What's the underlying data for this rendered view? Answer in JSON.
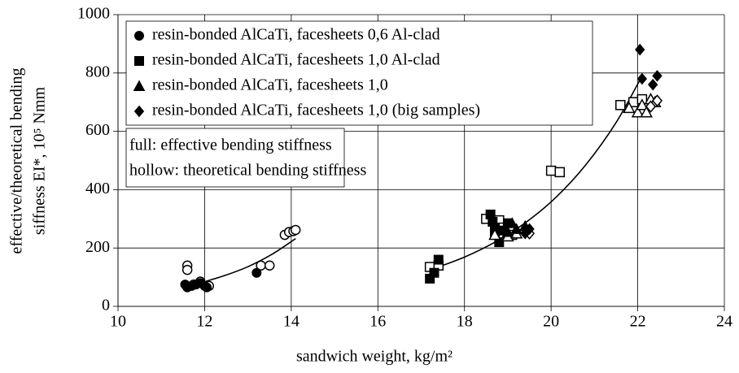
{
  "chart_data": {
    "type": "scatter",
    "x_label": "sandwich weight, kg/m²",
    "y_label": [
      "effective/theoretical bending",
      "siffness EI*, 10⁵ Nmm"
    ],
    "xlim": [
      10,
      24
    ],
    "xticks": [
      10,
      12,
      14,
      16,
      18,
      20,
      22,
      24
    ],
    "ylim": [
      0,
      1000
    ],
    "yticks": [
      0,
      200,
      400,
      600,
      800,
      1000
    ],
    "grid": true,
    "legend_position": "upper left",
    "annotations": [
      "full: effective bending stiffness",
      "hollow: theoretical bending stiffness"
    ],
    "series": [
      {
        "name": "resin-bonded AlCaTi, facesheets 0,6 Al-clad",
        "marker": "circle",
        "color": "#000000",
        "x": [
          11.55,
          11.6,
          11.7,
          11.8,
          11.9,
          12.0,
          12.05,
          13.2
        ],
        "values": [
          75,
          65,
          70,
          75,
          80,
          70,
          65,
          115
        ],
        "hollow_x": [
          11.6,
          11.6,
          11.75,
          11.9,
          12.1,
          13.3,
          13.5,
          13.85,
          13.95,
          14.05,
          14.1
        ],
        "hollow_values": [
          140,
          125,
          75,
          85,
          70,
          140,
          140,
          245,
          255,
          258,
          262
        ]
      },
      {
        "name": "resin-bonded AlCaTi, facesheets 1,0 Al-clad",
        "marker": "square",
        "color": "#000000",
        "x": [
          17.2,
          17.3,
          17.4,
          18.6,
          18.65,
          18.7,
          18.8,
          18.9,
          19.0,
          18.7
        ],
        "values": [
          95,
          115,
          160,
          315,
          290,
          270,
          220,
          260,
          285,
          250
        ],
        "hollow_x": [
          17.2,
          17.4,
          18.5,
          18.8,
          18.9,
          19.1,
          20.0,
          20.2,
          21.6,
          21.9,
          22.1
        ],
        "hollow_values": [
          135,
          140,
          300,
          295,
          270,
          245,
          465,
          460,
          690,
          700,
          710
        ]
      },
      {
        "name": "resin-bonded AlCaTi, facesheets 1,0",
        "marker": "triangle",
        "color": "#000000",
        "x": [
          19.1,
          19.2,
          19.4,
          19.0
        ],
        "values": [
          285,
          265,
          275,
          255
        ],
        "hollow_x": [
          18.7,
          19.0,
          19.2,
          21.8,
          22.0,
          22.1,
          22.2,
          22.3,
          22.4
        ],
        "hollow_values": [
          245,
          240,
          250,
          680,
          665,
          690,
          665,
          710,
          700
        ]
      },
      {
        "name": "resin-bonded AlCaTi, facesheets 1,0 (big samples)",
        "marker": "diamond",
        "color": "#000000",
        "x": [
          22.05,
          22.1,
          22.35,
          22.45,
          19.4,
          19.5
        ],
        "values": [
          880,
          780,
          760,
          790,
          250,
          265
        ],
        "hollow_x": [
          22.3,
          22.45,
          19.5
        ],
        "hollow_values": [
          685,
          705,
          250
        ]
      }
    ],
    "trendlines": [
      {
        "x": [
          11.9,
          12.45,
          13.0,
          13.55,
          14.1
        ],
        "values": [
          80,
          105,
          136,
          178,
          232
        ]
      },
      {
        "x": [
          17.3,
          18.0,
          18.7,
          19.4,
          20.1,
          20.8,
          21.5,
          22.1
        ],
        "values": [
          130,
          169,
          220,
          286,
          372,
          485,
          630,
          790
        ]
      }
    ]
  }
}
